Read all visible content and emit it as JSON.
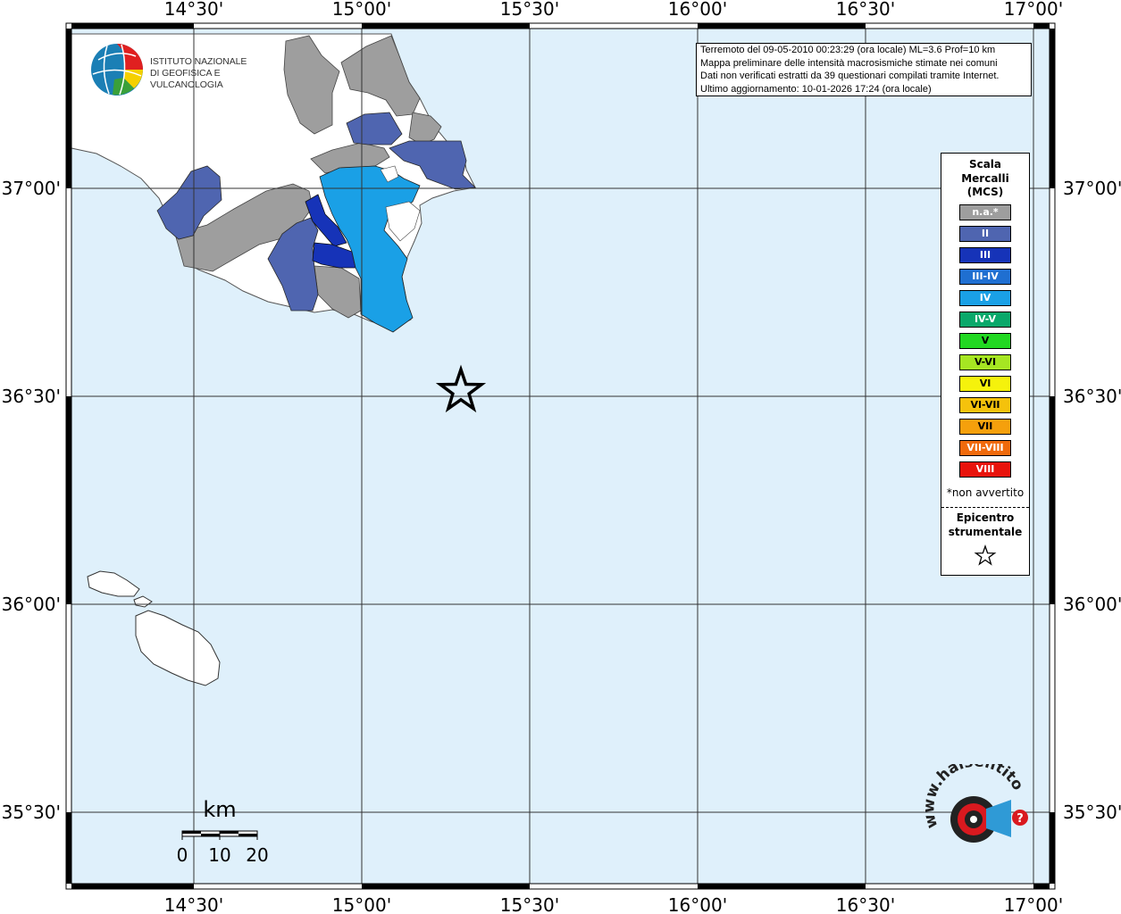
{
  "info": {
    "line1": "Terremoto del 09-05-2010 00:23:29 (ora locale) ML=3.6 Prof=10 km",
    "line2": "Mappa preliminare delle intensità macrosismiche stimate nei comuni",
    "line3": "Dati non verificati estratti da 39 questionari compilati tramite Internet.",
    "line4": "Ultimo aggiornamento: 10-01-2026 17:24 (ora locale)"
  },
  "logo": {
    "line1": "ISTITUTO NAZIONALE",
    "line2": "DI GEOFISICA E VULCANOLOGIA"
  },
  "axes": {
    "lon_ticks": [
      "14°30'",
      "15°00'",
      "15°30'",
      "16°00'",
      "16°30'",
      "17°00'"
    ],
    "lat_ticks": [
      "37°00'",
      "36°30'",
      "36°00'",
      "35°30'"
    ]
  },
  "legend": {
    "title_line1": "Scala",
    "title_line2": "Mercalli",
    "title_line3": "(MCS)",
    "items": [
      {
        "label": "n.a.*",
        "color": "#9e9e9e"
      },
      {
        "label": "II",
        "color": "#4f65b0"
      },
      {
        "label": "III",
        "color": "#1633b8"
      },
      {
        "label": "III-IV",
        "color": "#1f6fd1"
      },
      {
        "label": "IV",
        "color": "#1aa0e6"
      },
      {
        "label": "IV-V",
        "color": "#0aa86a"
      },
      {
        "label": "V",
        "color": "#22d822"
      },
      {
        "label": "V-VI",
        "color": "#a6e622"
      },
      {
        "label": "VI",
        "color": "#f5f20c"
      },
      {
        "label": "VI-VII",
        "color": "#f5c20c"
      },
      {
        "label": "VII",
        "color": "#f5a00c"
      },
      {
        "label": "VII-VIII",
        "color": "#f06a0c"
      },
      {
        "label": "VIII",
        "color": "#e8130c"
      }
    ],
    "note": "*non avvertito",
    "epicentre_line1": "Epicentro",
    "epicentre_line2": "strumentale"
  },
  "scalebar": {
    "unit": "km",
    "labels": [
      "0",
      "10",
      "20"
    ]
  },
  "watermark": {
    "site": "www.haisentitoilterremoto.it"
  },
  "colors": {
    "sea": "#dff0fb",
    "land": "#ffffff",
    "na": "#9e9e9e",
    "ii": "#4f65b0",
    "iii": "#1633b8",
    "iv": "#1aa0e6"
  }
}
